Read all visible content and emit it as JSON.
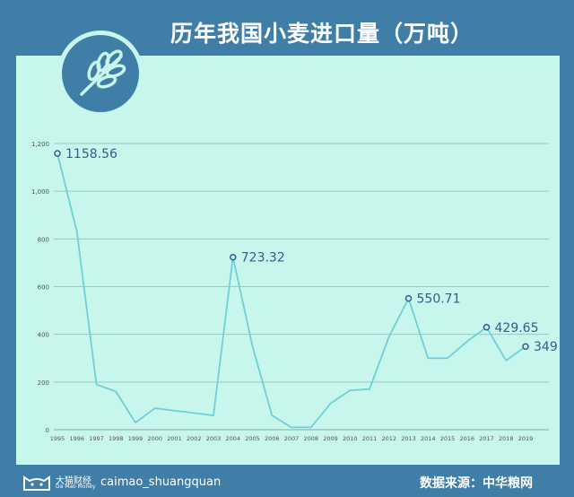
{
  "title": "历年我国小麦进口量（万吨）",
  "footer": {
    "brand_cn": "大猫财经",
    "brand_en": "Da Mao Money",
    "handle": "caimao_shuangquan",
    "source": "数据来源：中华粮网"
  },
  "logo_icon": "wheat-icon",
  "colors": {
    "background": "#3f7ea6",
    "panel": "#c6f6ec",
    "line": "#6fd0d8",
    "label": "#2e5f8a"
  },
  "chart_data": {
    "type": "line",
    "title": "历年我国小麦进口量（万吨）",
    "xlabel": "",
    "ylabel": "",
    "categories": [
      "1995",
      "1996",
      "1997",
      "1998",
      "1999",
      "2000",
      "2001",
      "2002",
      "2003",
      "2004",
      "2005",
      "2006",
      "2007",
      "2008",
      "2009",
      "2010",
      "2011",
      "2012",
      "2013",
      "2014",
      "2015",
      "2016",
      "2017",
      "2018",
      "2019"
    ],
    "values": [
      1158.56,
      830,
      190,
      160,
      30,
      90,
      80,
      70,
      60,
      723.32,
      350,
      60,
      10,
      10,
      110,
      165,
      170,
      390,
      550.71,
      300,
      300,
      370,
      429.65,
      290,
      349
    ],
    "ylim": [
      0,
      1200
    ],
    "yticks": [
      0,
      200,
      400,
      600,
      800,
      1000,
      1200
    ],
    "ytick_labels": [
      "0",
      "200",
      "400",
      "600",
      "800",
      "1,000",
      "1,200"
    ],
    "annotations": [
      {
        "category": "1995",
        "label": "1158.56"
      },
      {
        "category": "2004",
        "label": "723.32"
      },
      {
        "category": "2013",
        "label": "550.71"
      },
      {
        "category": "2017",
        "label": "429.65"
      },
      {
        "category": "2019",
        "label": "349"
      }
    ],
    "grid": true,
    "legend": "none"
  }
}
